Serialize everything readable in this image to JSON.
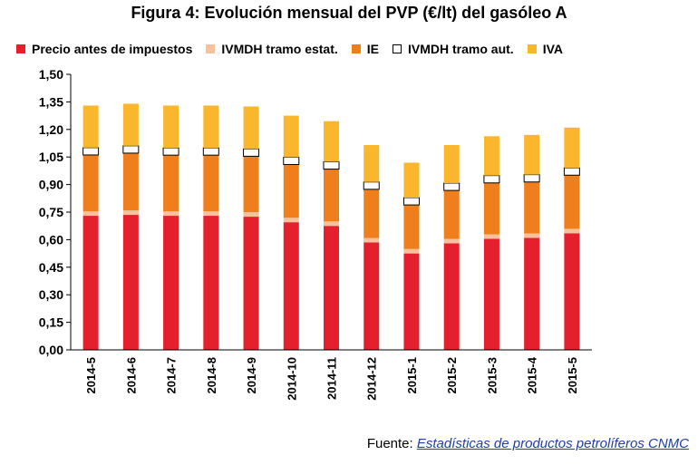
{
  "chart_data": {
    "type": "bar",
    "stacked": true,
    "title": "Figura 4: Evolución mensual del PVP (€/lt) del gasóleo A",
    "categories": [
      "2014-5",
      "2014-6",
      "2014-7",
      "2014-8",
      "2014-9",
      "2014-10",
      "2014-11",
      "2014-12",
      "2015-1",
      "2015-2",
      "2015-3",
      "2015-4",
      "2015-5"
    ],
    "series": [
      {
        "name": "Precio antes de impuestos",
        "color": "#e3202b",
        "values": [
          0.73,
          0.735,
          0.73,
          0.73,
          0.725,
          0.695,
          0.675,
          0.585,
          0.525,
          0.58,
          0.605,
          0.61,
          0.635
        ]
      },
      {
        "name": "IVMDH tramo estat.",
        "color": "#f7c19c",
        "values": [
          0.024,
          0.024,
          0.024,
          0.024,
          0.024,
          0.024,
          0.024,
          0.024,
          0.024,
          0.024,
          0.024,
          0.024,
          0.024
        ]
      },
      {
        "name": "IE",
        "color": "#ee7f1c",
        "values": [
          0.307,
          0.312,
          0.306,
          0.306,
          0.305,
          0.29,
          0.285,
          0.265,
          0.24,
          0.264,
          0.28,
          0.28,
          0.292
        ]
      },
      {
        "name": "IVMDH tramo aut.",
        "color": "#ffffff",
        "values": [
          0.04,
          0.04,
          0.04,
          0.04,
          0.04,
          0.04,
          0.04,
          0.04,
          0.04,
          0.04,
          0.04,
          0.04,
          0.04
        ]
      },
      {
        "name": "IVA",
        "color": "#fab72d",
        "values": [
          0.229,
          0.229,
          0.23,
          0.23,
          0.231,
          0.226,
          0.221,
          0.201,
          0.19,
          0.207,
          0.214,
          0.216,
          0.219
        ]
      }
    ],
    "ylim": [
      0,
      1.5
    ],
    "yticks": [
      "0,00",
      "0,15",
      "0,30",
      "0,45",
      "0,60",
      "0,75",
      "0,90",
      "1,05",
      "1,20",
      "1,35",
      "1,50"
    ],
    "xlabel": "",
    "ylabel": "",
    "grid": false,
    "legend_position": "top"
  },
  "source": {
    "label": "Fuente: ",
    "link_text": "Estadísticas de productos petrolíferos CNMC"
  }
}
